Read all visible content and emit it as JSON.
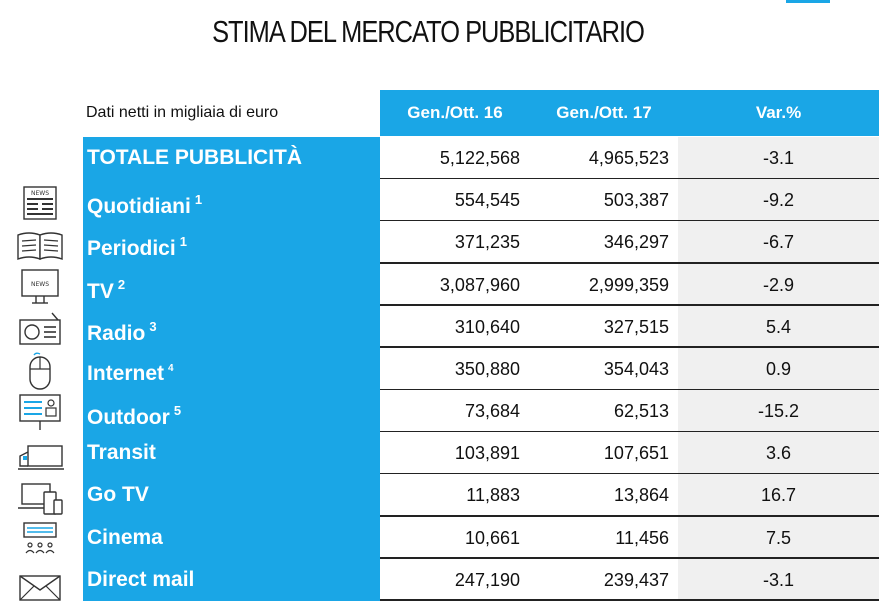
{
  "title": "STIMA DEL MERCATO PUBBLICITARIO",
  "subtitle": "Dati netti in migliaia di euro",
  "columns": [
    "Gen./Ott. 16",
    "Gen./Ott. 17",
    "Var.%"
  ],
  "rows": [
    {
      "label": "TOTALE PUBBLICITÀ",
      "note": "",
      "v16": "5,122,568",
      "v17": "4,965,523",
      "var": "-3.1",
      "icon": ""
    },
    {
      "label": "Quotidiani",
      "note": "1",
      "v16": "554,545",
      "v17": "503,387",
      "var": "-9.2",
      "icon": "newspaper-icon"
    },
    {
      "label": "Periodici",
      "note": "1",
      "v16": "371,235",
      "v17": "346,297",
      "var": "-6.7",
      "icon": "open-magazine-icon"
    },
    {
      "label": "TV",
      "note": "2",
      "v16": "3,087,960",
      "v17": "2,999,359",
      "var": "-2.9",
      "icon": "tv-icon"
    },
    {
      "label": "Radio",
      "note": "3",
      "v16": "310,640",
      "v17": "327,515",
      "var": "5.4",
      "icon": "radio-icon"
    },
    {
      "label": "Internet",
      "note": "4",
      "v16": "350,880",
      "v17": "354,043",
      "var": "0.9",
      "icon": "mouse-icon"
    },
    {
      "label": "Outdoor",
      "note": "5",
      "v16": "73,684",
      "v17": "62,513",
      "var": "-15.2",
      "icon": "billboard-icon"
    },
    {
      "label": "Transit",
      "note": "",
      "v16": "103,891",
      "v17": "107,651",
      "var": "3.6",
      "icon": "bus-icon"
    },
    {
      "label": "Go TV",
      "note": "",
      "v16": "11,883",
      "v17": "13,864",
      "var": "16.7",
      "icon": "devices-icon"
    },
    {
      "label": "Cinema",
      "note": "",
      "v16": "10,661",
      "v17": "11,456",
      "var": "7.5",
      "icon": "cinema-icon"
    },
    {
      "label": "Direct mail",
      "note": "",
      "v16": "247,190",
      "v17": "239,437",
      "var": "-3.1",
      "icon": "envelope-icon"
    }
  ],
  "colors": {
    "accent": "#1aa6e6",
    "var_background": "#f0f0f0",
    "text": "#111111"
  }
}
